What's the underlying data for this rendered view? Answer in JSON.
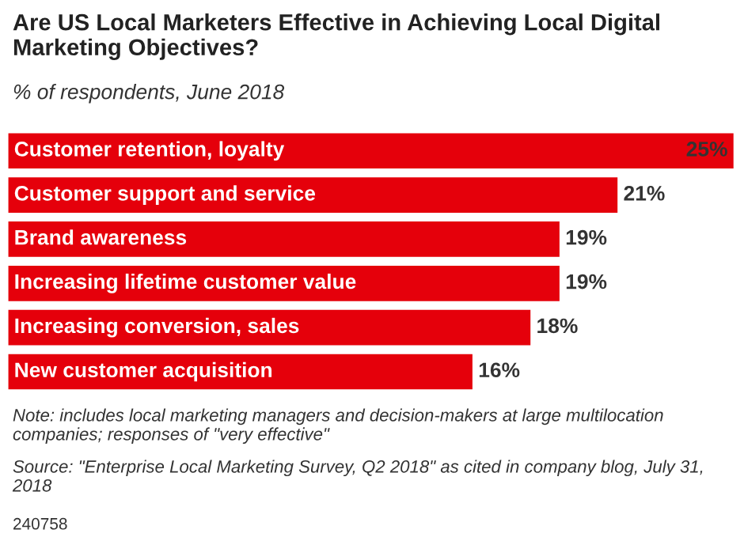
{
  "chart_data": {
    "type": "bar",
    "orientation": "horizontal",
    "title": "Are US Local Marketers Effective in Achieving Local Digital Marketing Objectives?",
    "subtitle": "% of respondents, June 2018",
    "categories": [
      "Customer retention, loyalty",
      "Customer support and service",
      "Brand awareness",
      "Increasing lifetime customer value",
      "Increasing conversion, sales",
      "New customer acquisition"
    ],
    "values": [
      25,
      21,
      19,
      19,
      18,
      16
    ],
    "value_labels": [
      "25%",
      "21%",
      "19%",
      "19%",
      "18%",
      "16%"
    ],
    "color": "#e5000b",
    "tick_labels": false,
    "annotations": [
      "Note: includes local marketing managers and decision-makers at large multilocation companies; responses of \"very effective\"",
      "Source: \"Enterprise Local Marketing Survey, Q2 2018\" as cited in company blog, July 31, 2018",
      "240758"
    ]
  }
}
